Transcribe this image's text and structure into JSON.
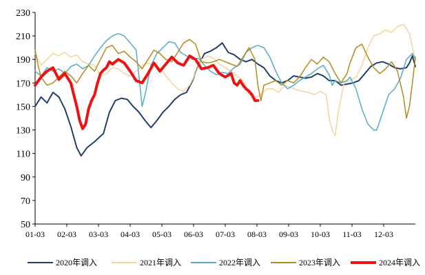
{
  "chart_data": {
    "type": "line",
    "title": "",
    "xlabel": "",
    "ylabel": "",
    "ylim": [
      50,
      230
    ],
    "yticks": [
      "230",
      "210",
      "190",
      "170",
      "150",
      "130",
      "110",
      "90",
      "70",
      "50"
    ],
    "x_ticks": [
      "01-03",
      "02-03",
      "03-03",
      "04-03",
      "05-03",
      "06-03",
      "07-03",
      "08-03",
      "09-03",
      "10-03",
      "11-03",
      "12-03"
    ],
    "grid": false,
    "legend_position": "bottom",
    "series": [
      {
        "name": "2020年调入",
        "color": "#1f3d6b",
        "width": 2,
        "points": [
          [
            0,
            150
          ],
          [
            4,
            158
          ],
          [
            8,
            153
          ],
          [
            12,
            162
          ],
          [
            16,
            158
          ],
          [
            20,
            148
          ],
          [
            24,
            133
          ],
          [
            28,
            115
          ],
          [
            31,
            108
          ],
          [
            35,
            115
          ],
          [
            40,
            120
          ],
          [
            46,
            127
          ],
          [
            50,
            145
          ],
          [
            54,
            155
          ],
          [
            58,
            157
          ],
          [
            62,
            156
          ],
          [
            66,
            150
          ],
          [
            70,
            145
          ],
          [
            74,
            138
          ],
          [
            78,
            132
          ],
          [
            82,
            138
          ],
          [
            86,
            145
          ],
          [
            90,
            150
          ],
          [
            94,
            156
          ],
          [
            98,
            160
          ],
          [
            102,
            162
          ],
          [
            106,
            172
          ],
          [
            110,
            185
          ],
          [
            114,
            195
          ],
          [
            118,
            197
          ],
          [
            122,
            200
          ],
          [
            126,
            204
          ],
          [
            130,
            196
          ],
          [
            134,
            194
          ],
          [
            138,
            190
          ],
          [
            142,
            188
          ],
          [
            146,
            190
          ],
          [
            150,
            186
          ],
          [
            154,
            183
          ],
          [
            158,
            176
          ],
          [
            162,
            172
          ],
          [
            166,
            170
          ],
          [
            170,
            172
          ],
          [
            174,
            176
          ],
          [
            178,
            175
          ],
          [
            182,
            174
          ],
          [
            186,
            175
          ],
          [
            190,
            178
          ],
          [
            194,
            176
          ],
          [
            198,
            172
          ],
          [
            202,
            172
          ],
          [
            206,
            168
          ],
          [
            210,
            169
          ],
          [
            214,
            170
          ],
          [
            218,
            172
          ],
          [
            222,
            178
          ],
          [
            226,
            184
          ],
          [
            230,
            187
          ],
          [
            234,
            188
          ],
          [
            238,
            186
          ],
          [
            242,
            183
          ],
          [
            246,
            182
          ],
          [
            250,
            183
          ],
          [
            252,
            187
          ],
          [
            254,
            193
          ],
          [
            256,
            184
          ]
        ]
      },
      {
        "name": "2021年调入",
        "color": "#f2d59a",
        "width": 1.5,
        "points": [
          [
            0,
            195
          ],
          [
            4,
            185
          ],
          [
            8,
            190
          ],
          [
            12,
            195
          ],
          [
            16,
            193
          ],
          [
            20,
            196
          ],
          [
            24,
            192
          ],
          [
            28,
            194
          ],
          [
            32,
            188
          ],
          [
            36,
            186
          ],
          [
            40,
            185
          ],
          [
            44,
            176
          ],
          [
            48,
            178
          ],
          [
            52,
            183
          ],
          [
            56,
            182
          ],
          [
            60,
            178
          ],
          [
            64,
            176
          ],
          [
            68,
            180
          ],
          [
            72,
            185
          ],
          [
            76,
            187
          ],
          [
            80,
            185
          ],
          [
            84,
            183
          ],
          [
            88,
            176
          ],
          [
            92,
            170
          ],
          [
            96,
            165
          ],
          [
            100,
            163
          ],
          [
            104,
            168
          ],
          [
            108,
            178
          ],
          [
            112,
            190
          ],
          [
            116,
            193
          ],
          [
            120,
            191
          ],
          [
            124,
            186
          ],
          [
            128,
            183
          ],
          [
            132,
            180
          ],
          [
            136,
            176
          ],
          [
            140,
            172
          ],
          [
            144,
            160
          ],
          [
            148,
            157
          ],
          [
            152,
            160
          ],
          [
            156,
            165
          ],
          [
            160,
            165
          ],
          [
            164,
            162
          ],
          [
            168,
            168
          ],
          [
            172,
            166
          ],
          [
            176,
            164
          ],
          [
            180,
            163
          ],
          [
            184,
            162
          ],
          [
            188,
            160
          ],
          [
            192,
            163
          ],
          [
            196,
            160
          ],
          [
            198,
            140
          ],
          [
            200,
            130
          ],
          [
            202,
            125
          ],
          [
            204,
            145
          ],
          [
            208,
            170
          ],
          [
            212,
            172
          ],
          [
            216,
            175
          ],
          [
            220,
            185
          ],
          [
            224,
            200
          ],
          [
            228,
            210
          ],
          [
            232,
            212
          ],
          [
            236,
            215
          ],
          [
            240,
            213
          ],
          [
            244,
            218
          ],
          [
            248,
            220
          ],
          [
            252,
            212
          ],
          [
            256,
            190
          ]
        ]
      },
      {
        "name": "2022年调入",
        "color": "#55a9cc",
        "width": 1.5,
        "points": [
          [
            0,
            180
          ],
          [
            4,
            176
          ],
          [
            8,
            183
          ],
          [
            12,
            180
          ],
          [
            16,
            182
          ],
          [
            20,
            178
          ],
          [
            24,
            184
          ],
          [
            28,
            186
          ],
          [
            32,
            182
          ],
          [
            36,
            185
          ],
          [
            40,
            193
          ],
          [
            44,
            200
          ],
          [
            48,
            206
          ],
          [
            52,
            210
          ],
          [
            56,
            212
          ],
          [
            60,
            210
          ],
          [
            64,
            204
          ],
          [
            68,
            198
          ],
          [
            70,
            175
          ],
          [
            72,
            150
          ],
          [
            74,
            160
          ],
          [
            78,
            185
          ],
          [
            82,
            195
          ],
          [
            86,
            200
          ],
          [
            90,
            205
          ],
          [
            94,
            204
          ],
          [
            98,
            196
          ],
          [
            102,
            193
          ],
          [
            106,
            190
          ],
          [
            110,
            191
          ],
          [
            114,
            185
          ],
          [
            118,
            180
          ],
          [
            122,
            177
          ],
          [
            126,
            179
          ],
          [
            130,
            178
          ],
          [
            134,
            183
          ],
          [
            138,
            186
          ],
          [
            142,
            196
          ],
          [
            146,
            200
          ],
          [
            150,
            202
          ],
          [
            154,
            200
          ],
          [
            158,
            192
          ],
          [
            162,
            180
          ],
          [
            166,
            170
          ],
          [
            170,
            165
          ],
          [
            174,
            168
          ],
          [
            178,
            172
          ],
          [
            182,
            175
          ],
          [
            186,
            178
          ],
          [
            190,
            182
          ],
          [
            194,
            185
          ],
          [
            198,
            177
          ],
          [
            200,
            168
          ],
          [
            202,
            172
          ],
          [
            206,
            170
          ],
          [
            210,
            172
          ],
          [
            212,
            175
          ],
          [
            216,
            165
          ],
          [
            220,
            148
          ],
          [
            224,
            135
          ],
          [
            228,
            130
          ],
          [
            230,
            130
          ],
          [
            234,
            145
          ],
          [
            238,
            160
          ],
          [
            242,
            165
          ],
          [
            246,
            174
          ],
          [
            250,
            190
          ],
          [
            254,
            195
          ],
          [
            256,
            190
          ]
        ]
      },
      {
        "name": "2023年调入",
        "color": "#b38a1a",
        "width": 1.5,
        "points": [
          [
            0,
            198
          ],
          [
            2,
            185
          ],
          [
            4,
            175
          ],
          [
            8,
            168
          ],
          [
            12,
            170
          ],
          [
            16,
            175
          ],
          [
            20,
            180
          ],
          [
            24,
            176
          ],
          [
            28,
            170
          ],
          [
            32,
            178
          ],
          [
            36,
            185
          ],
          [
            40,
            180
          ],
          [
            44,
            190
          ],
          [
            48,
            200
          ],
          [
            52,
            202
          ],
          [
            56,
            195
          ],
          [
            60,
            197
          ],
          [
            64,
            192
          ],
          [
            68,
            188
          ],
          [
            72,
            182
          ],
          [
            76,
            190
          ],
          [
            80,
            198
          ],
          [
            84,
            195
          ],
          [
            88,
            190
          ],
          [
            92,
            188
          ],
          [
            96,
            196
          ],
          [
            100,
            204
          ],
          [
            104,
            207
          ],
          [
            108,
            203
          ],
          [
            112,
            188
          ],
          [
            116,
            187
          ],
          [
            120,
            188
          ],
          [
            124,
            190
          ],
          [
            128,
            188
          ],
          [
            132,
            186
          ],
          [
            136,
            184
          ],
          [
            140,
            192
          ],
          [
            144,
            200
          ],
          [
            148,
            190
          ],
          [
            150,
            168
          ],
          [
            152,
            155
          ],
          [
            154,
            168
          ],
          [
            158,
            170
          ],
          [
            162,
            172
          ],
          [
            166,
            168
          ],
          [
            170,
            172
          ],
          [
            174,
            170
          ],
          [
            178,
            175
          ],
          [
            182,
            183
          ],
          [
            186,
            190
          ],
          [
            190,
            186
          ],
          [
            194,
            192
          ],
          [
            198,
            188
          ],
          [
            202,
            178
          ],
          [
            206,
            170
          ],
          [
            210,
            178
          ],
          [
            212,
            187
          ],
          [
            216,
            200
          ],
          [
            220,
            203
          ],
          [
            224,
            192
          ],
          [
            228,
            183
          ],
          [
            232,
            178
          ],
          [
            236,
            182
          ],
          [
            240,
            188
          ],
          [
            244,
            180
          ],
          [
            248,
            158
          ],
          [
            250,
            140
          ],
          [
            252,
            150
          ],
          [
            254,
            170
          ],
          [
            256,
            192
          ]
        ]
      },
      {
        "name": "2024年调入",
        "color": "#ee1111",
        "width": 4,
        "points": [
          [
            0,
            168
          ],
          [
            4,
            175
          ],
          [
            8,
            180
          ],
          [
            12,
            183
          ],
          [
            16,
            173
          ],
          [
            20,
            178
          ],
          [
            24,
            170
          ],
          [
            26,
            160
          ],
          [
            28,
            150
          ],
          [
            30,
            138
          ],
          [
            32,
            131
          ],
          [
            34,
            135
          ],
          [
            36,
            148
          ],
          [
            38,
            155
          ],
          [
            40,
            160
          ],
          [
            42,
            170
          ],
          [
            44,
            178
          ],
          [
            46,
            181
          ],
          [
            48,
            183
          ],
          [
            50,
            188
          ],
          [
            52,
            186
          ],
          [
            56,
            190
          ],
          [
            60,
            187
          ],
          [
            64,
            180
          ],
          [
            68,
            172
          ],
          [
            72,
            170
          ],
          [
            76,
            178
          ],
          [
            80,
            187
          ],
          [
            84,
            180
          ],
          [
            88,
            186
          ],
          [
            92,
            192
          ],
          [
            96,
            187
          ],
          [
            100,
            185
          ],
          [
            104,
            193
          ],
          [
            108,
            190
          ],
          [
            112,
            182
          ],
          [
            116,
            183
          ],
          [
            120,
            185
          ],
          [
            124,
            178
          ],
          [
            128,
            175
          ],
          [
            132,
            178
          ],
          [
            134,
            170
          ],
          [
            136,
            168
          ],
          [
            138,
            172
          ],
          [
            140,
            168
          ],
          [
            142,
            165
          ],
          [
            144,
            163
          ],
          [
            146,
            160
          ],
          [
            148,
            155
          ],
          [
            150,
            155
          ]
        ]
      }
    ]
  }
}
